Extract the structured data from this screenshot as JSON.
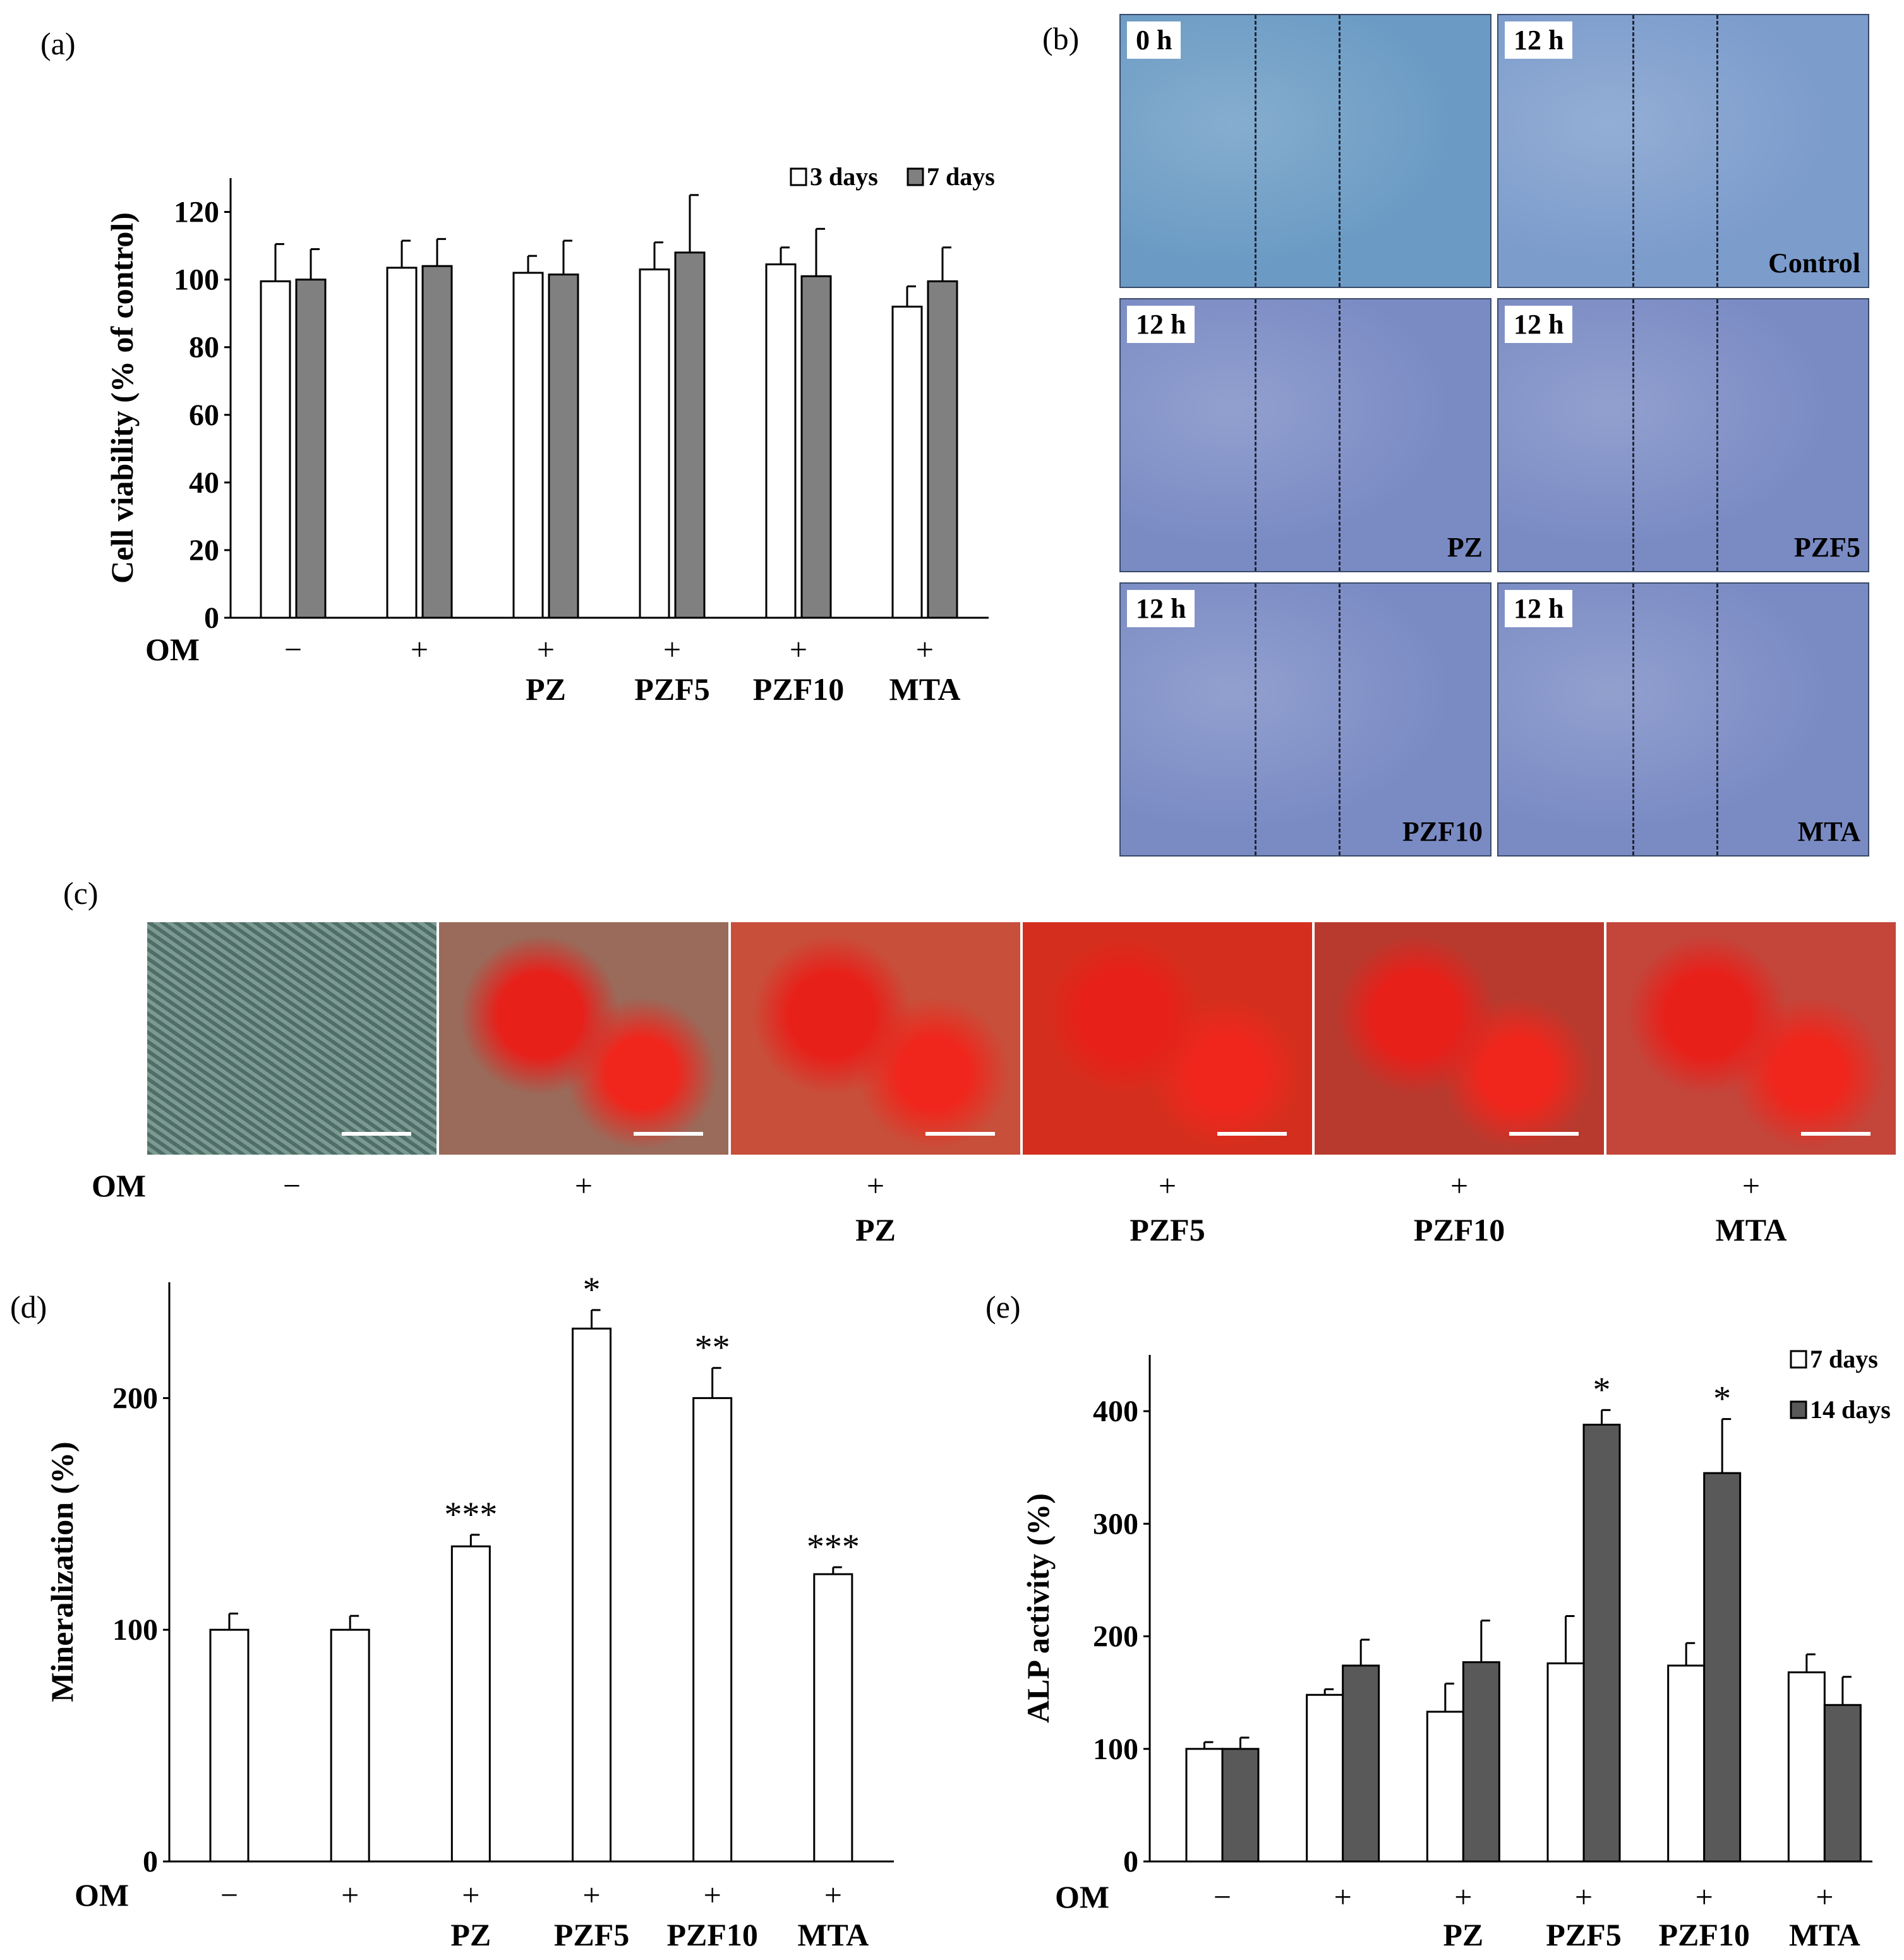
{
  "panels": {
    "a": "(a)",
    "b": "(b)",
    "c": "(c)",
    "d": "(d)",
    "e": "(e)"
  },
  "om_label": "OM",
  "conditions": [
    {
      "om": "−",
      "name": ""
    },
    {
      "om": "+",
      "name": ""
    },
    {
      "om": "+",
      "name": "PZ"
    },
    {
      "om": "+",
      "name": "PZF5"
    },
    {
      "om": "+",
      "name": "PZF10"
    },
    {
      "om": "+",
      "name": "MTA"
    }
  ],
  "chart_data": [
    {
      "id": "a",
      "type": "bar",
      "ylabel": "Cell viability  (% of control)",
      "ylim": [
        0,
        130
      ],
      "yticks": [
        0,
        20,
        40,
        60,
        80,
        100,
        120
      ],
      "legend_placement": "top-right",
      "categories_om": [
        "−",
        "+",
        "+",
        "+",
        "+",
        "+"
      ],
      "categories": [
        "",
        "",
        "PZ",
        "PZF5",
        "PZF10",
        "MTA"
      ],
      "series": [
        {
          "name": "3 days",
          "color": "#ffffff",
          "values": [
            99.5,
            103.5,
            102,
            103,
            104.5,
            92
          ],
          "errors": [
            11,
            8,
            5,
            8,
            5,
            6
          ]
        },
        {
          "name": "7 days",
          "color": "#808080",
          "values": [
            100,
            104,
            101.5,
            108,
            101,
            99.5
          ],
          "errors": [
            9,
            8,
            10,
            17,
            14,
            10
          ]
        }
      ]
    },
    {
      "id": "d",
      "type": "bar",
      "ylabel": "Mineralization (%)",
      "ylim": [
        0,
        250
      ],
      "yticks": [
        0,
        100,
        200
      ],
      "categories_om": [
        "−",
        "+",
        "+",
        "+",
        "+",
        "+"
      ],
      "categories": [
        "",
        "",
        "PZ",
        "PZF5",
        "PZF10",
        "MTA"
      ],
      "series": [
        {
          "color": "#ffffff",
          "values": [
            100,
            100,
            136,
            230,
            200,
            124
          ],
          "errors": [
            7,
            6,
            5,
            8,
            13,
            3
          ]
        }
      ],
      "annotations": [
        "",
        "",
        "***",
        "*",
        "**",
        "***"
      ]
    },
    {
      "id": "e",
      "type": "bar",
      "ylabel": "ALP activity (%)",
      "ylim": [
        0,
        450
      ],
      "yticks": [
        0,
        100,
        200,
        300,
        400
      ],
      "legend_placement": "top-right",
      "categories_om": [
        "−",
        "+",
        "+",
        "+",
        "+",
        "+"
      ],
      "categories": [
        "",
        "",
        "PZ",
        "PZF5",
        "PZF10",
        "MTA"
      ],
      "series": [
        {
          "name": "7 days",
          "color": "#ffffff",
          "values": [
            100,
            148,
            133,
            176,
            174,
            168
          ],
          "errors": [
            6,
            5,
            25,
            42,
            20,
            16
          ]
        },
        {
          "name": "14 days",
          "color": "#595959",
          "values": [
            100,
            174,
            177,
            388,
            345,
            139
          ],
          "errors": [
            10,
            23,
            37,
            13,
            48,
            25
          ]
        }
      ],
      "annotations": [
        "",
        "",
        "",
        "*",
        "*",
        ""
      ]
    }
  ],
  "wound_healing": {
    "tiles": [
      {
        "time": "0 h",
        "label": ""
      },
      {
        "time": "12 h",
        "label": "Control"
      },
      {
        "time": "12 h",
        "label": "PZ"
      },
      {
        "time": "12 h",
        "label": "PZF5"
      },
      {
        "time": "12 h",
        "label": "PZF10"
      },
      {
        "time": "12 h",
        "label": "MTA"
      }
    ]
  },
  "staining": {
    "tiles": [
      "#5c7a73",
      "#9a6a5a",
      "#c84f3a",
      "#d42f1e",
      "#b83a2e",
      "#c4453a"
    ]
  }
}
